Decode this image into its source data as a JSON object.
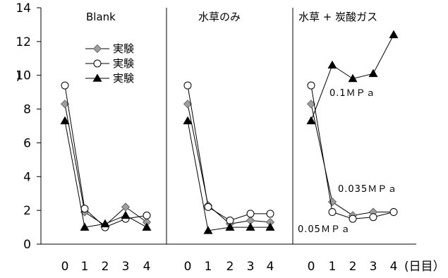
{
  "chart_data": {
    "type": "line",
    "ylim": [
      0,
      14
    ],
    "yticks": [
      0,
      2,
      4,
      6,
      8,
      10,
      12,
      14
    ],
    "ylabel": ")",
    "x": [
      0,
      1,
      2,
      3,
      4
    ],
    "x_unit_label": "(日目）",
    "legend": [
      "実験",
      "実験",
      "実験"
    ],
    "series_markers": [
      "diamond",
      "circle",
      "triangle"
    ],
    "colors": {
      "diamond": "#9e9e9e",
      "circle": "#ffffff",
      "triangle": "#000000",
      "line": "#000000"
    },
    "panels": [
      {
        "title": "Blank",
        "series": [
          {
            "values": [
              8.3,
              1.9,
              1.1,
              2.2,
              1.3
            ]
          },
          {
            "values": [
              9.4,
              2.1,
              1.0,
              1.5,
              1.7
            ]
          },
          {
            "values": [
              7.3,
              1.0,
              1.2,
              1.7,
              1.0
            ]
          }
        ],
        "annotations": []
      },
      {
        "title": "水草のみ",
        "series": [
          {
            "values": [
              8.3,
              2.3,
              1.2,
              1.4,
              1.3
            ]
          },
          {
            "values": [
              9.4,
              2.2,
              1.4,
              1.8,
              1.8
            ]
          },
          {
            "values": [
              7.3,
              0.8,
              1.0,
              1.0,
              1.0
            ]
          }
        ],
        "annotations": []
      },
      {
        "title": "水草 + 炭酸ガス",
        "series": [
          {
            "values": [
              8.3,
              2.5,
              1.7,
              1.9,
              1.9
            ]
          },
          {
            "values": [
              9.4,
              1.9,
              1.5,
              1.6,
              1.9
            ]
          },
          {
            "values": [
              7.3,
              10.6,
              9.8,
              10.1,
              12.4
            ]
          }
        ],
        "annotations": [
          "0.1ＭＰａ",
          "0.035ＭＰａ",
          "0.05ＭＰａ"
        ]
      }
    ]
  }
}
